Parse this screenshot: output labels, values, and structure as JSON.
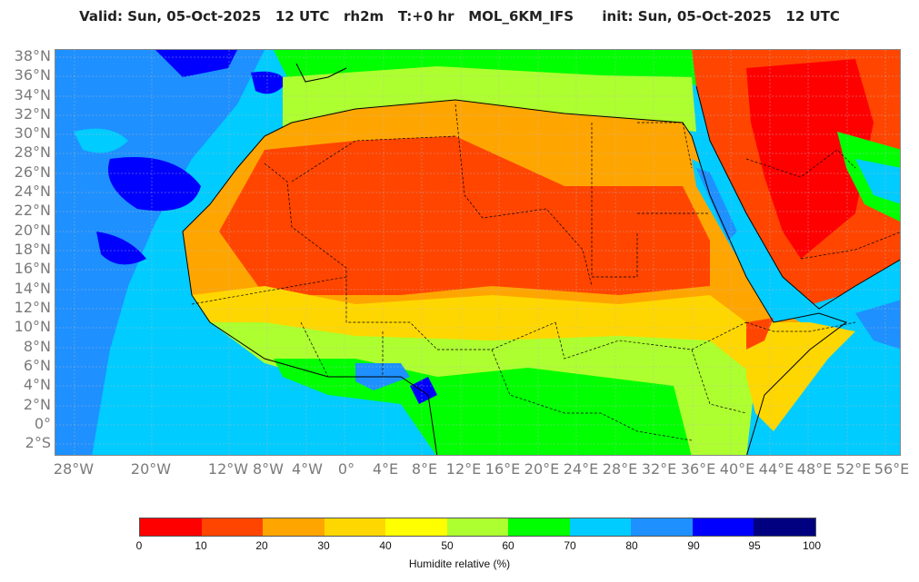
{
  "title": "Valid: Sun, 05-Oct-2025   12 UTC   rh2m   T:+0 hr   MOL_6KM_IFS      init: Sun, 05-Oct-2025   12 UTC",
  "map": {
    "lat_labels": [
      "38°N",
      "36°N",
      "34°N",
      "32°N",
      "30°N",
      "28°N",
      "26°N",
      "24°N",
      "22°N",
      "20°N",
      "18°N",
      "16°N",
      "14°N",
      "12°N",
      "10°N",
      "8°N",
      "6°N",
      "4°N",
      "2°N",
      "0°",
      "2°S"
    ],
    "lon_labels": [
      "28°W",
      "20°W",
      "12°W",
      "8°W",
      "4°W",
      "0°",
      "4°E",
      "8°E",
      "12°E",
      "16°E",
      "20°E",
      "24°E",
      "28°E",
      "32°E",
      "36°E",
      "40°E",
      "44°E",
      "48°E",
      "52°E",
      "56°E"
    ]
  },
  "colors": {
    "rh_0_10": "#ff0000",
    "rh_10_20": "#ff4500",
    "rh_20_30": "#ffa500",
    "rh_30_40": "#ffd700",
    "rh_40_50": "#ffff00",
    "rh_50_60": "#adff2f",
    "rh_60_70": "#00ff00",
    "rh_70_80": "#00ccff",
    "rh_80_90": "#1e90ff",
    "rh_90_95": "#0000ff",
    "rh_95_100": "#000080"
  },
  "legend": {
    "ticks": [
      "0",
      "10",
      "20",
      "30",
      "40",
      "50",
      "60",
      "70",
      "80",
      "90",
      "95",
      "100"
    ],
    "title": "Humidite relative (%)"
  }
}
